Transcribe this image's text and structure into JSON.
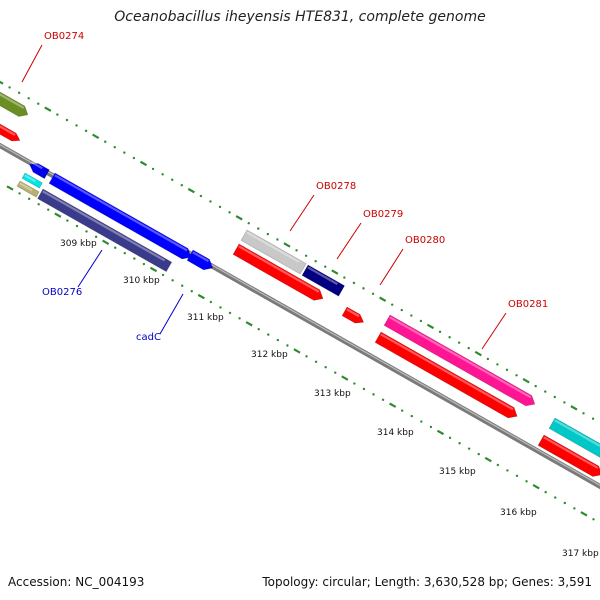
{
  "title": "Oceanobacillus iheyensis HTE831, complete genome",
  "footer": {
    "accession": "Accession: NC_004193",
    "stats": "Topology: circular; Length: 3,630,528 bp; Genes: 3,591"
  },
  "colors": {
    "backbone": "#8c8c8c",
    "tick": "#2e8b2e",
    "red_label": "#cc0000",
    "blue_label": "#0000cc"
  },
  "kbp_labels": [
    "309 kbp",
    "310 kbp",
    "311 kbp",
    "312 kbp",
    "313 kbp",
    "314 kbp",
    "315 kbp",
    "316 kbp",
    "317 kbp"
  ],
  "gene_labels": [
    {
      "text": "OB0274",
      "color": "red"
    },
    {
      "text": "OB0278",
      "color": "red"
    },
    {
      "text": "OB0279",
      "color": "red"
    },
    {
      "text": "OB0280",
      "color": "red"
    },
    {
      "text": "OB0281",
      "color": "red"
    },
    {
      "text": "OB0276",
      "color": "blue"
    },
    {
      "text": "cadC",
      "color": "blue"
    }
  ],
  "features": [
    {
      "name": "OB0274",
      "color": "#6b8e23"
    },
    {
      "name": "OB0274-cds",
      "color": "#ff0000"
    },
    {
      "name": "OB0276-top",
      "color": "#0000ee"
    },
    {
      "name": "OB0276",
      "color": "#0000ff"
    },
    {
      "name": "OB0276-cds",
      "color": "#3b3b8c"
    },
    {
      "name": "cyan-small",
      "color": "#00e5e5"
    },
    {
      "name": "tan-small",
      "color": "#b8b070"
    },
    {
      "name": "cadC",
      "color": "#0000ff"
    },
    {
      "name": "OB0278",
      "color": "#c8c8c8"
    },
    {
      "name": "OB0278-cds",
      "color": "#ff0000"
    },
    {
      "name": "OB0279",
      "color": "#000080"
    },
    {
      "name": "OB0280",
      "color": "#ff0000"
    },
    {
      "name": "OB0281",
      "color": "#ff1493"
    },
    {
      "name": "OB0281-cds",
      "color": "#ff0000"
    },
    {
      "name": "right-cyan",
      "color": "#00c8c8"
    },
    {
      "name": "right-red",
      "color": "#ff0000"
    }
  ]
}
